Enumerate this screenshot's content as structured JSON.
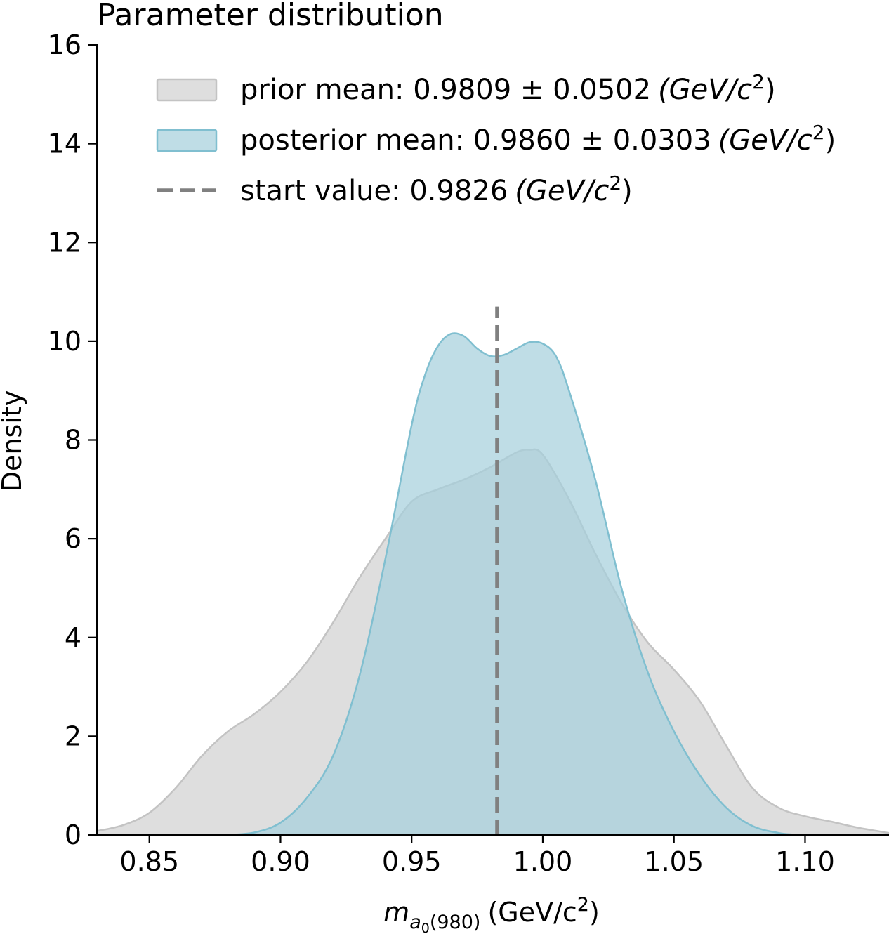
{
  "chart_data": {
    "type": "area",
    "title": "Parameter distribution",
    "ylabel": "Density",
    "xlabel": {
      "symbol": "m",
      "subscript": "a",
      "subsub": "0",
      "subscript_tail": "(980)",
      "unit": "(GeV/c",
      "unit_sup": "2",
      "unit_close": ")"
    },
    "xlim": [
      0.83,
      1.132
    ],
    "ylim": [
      0,
      16
    ],
    "x_ticks": [
      0.85,
      0.9,
      0.95,
      1.0,
      1.05,
      1.1
    ],
    "x_tick_labels": [
      "0.85",
      "0.90",
      "0.95",
      "1.00",
      "1.05",
      "1.10"
    ],
    "y_ticks": [
      0,
      2,
      4,
      6,
      8,
      10,
      12,
      14,
      16
    ],
    "y_tick_labels": [
      "0",
      "2",
      "4",
      "6",
      "8",
      "10",
      "12",
      "14",
      "16"
    ],
    "grid": false,
    "legend_position": "top",
    "series": [
      {
        "kind": "fill",
        "color": "#d3d3d3",
        "edge": "#c3c3c3",
        "opacity": 0.75,
        "legend": {
          "text": "prior mean: 0.9809 ± 0.0502",
          "unit": "(GeV/c",
          "sup": "2",
          "close": ")"
        },
        "x": [
          0.83,
          0.84,
          0.85,
          0.86,
          0.87,
          0.88,
          0.89,
          0.9,
          0.91,
          0.92,
          0.93,
          0.94,
          0.95,
          0.96,
          0.97,
          0.98,
          0.99,
          0.995,
          1.0,
          1.01,
          1.02,
          1.03,
          1.04,
          1.05,
          1.06,
          1.07,
          1.08,
          1.09,
          1.1,
          1.11,
          1.12,
          1.132
        ],
        "y": [
          0.08,
          0.2,
          0.45,
          0.95,
          1.6,
          2.1,
          2.45,
          2.9,
          3.5,
          4.3,
          5.2,
          6.0,
          6.75,
          7.0,
          7.2,
          7.45,
          7.75,
          7.8,
          7.7,
          6.8,
          5.7,
          4.7,
          3.9,
          3.35,
          2.7,
          1.8,
          0.95,
          0.55,
          0.38,
          0.27,
          0.15,
          0.04
        ]
      },
      {
        "kind": "fill",
        "color": "#a6d0dc",
        "edge": "#80bfd0",
        "opacity": 0.72,
        "legend": {
          "text": "posterior mean: 0.9860 ± 0.0303",
          "unit": "(GeV/c",
          "sup": "2",
          "close": ")"
        },
        "x": [
          0.88,
          0.89,
          0.9,
          0.91,
          0.92,
          0.93,
          0.94,
          0.95,
          0.955,
          0.96,
          0.965,
          0.97,
          0.975,
          0.98,
          0.985,
          0.99,
          0.995,
          1.0,
          1.005,
          1.01,
          1.02,
          1.03,
          1.04,
          1.05,
          1.06,
          1.07,
          1.08,
          1.09,
          1.095
        ],
        "y": [
          0.0,
          0.05,
          0.25,
          0.75,
          1.6,
          3.2,
          5.6,
          8.3,
          9.3,
          9.9,
          10.15,
          10.1,
          9.85,
          9.7,
          9.72,
          9.85,
          9.98,
          9.95,
          9.7,
          9.0,
          7.2,
          5.0,
          3.3,
          2.1,
          1.2,
          0.55,
          0.18,
          0.04,
          0.01
        ]
      },
      {
        "kind": "vline",
        "x": 0.9826,
        "y_top": 10.7,
        "color": "#808080",
        "style": "dashed",
        "legend": {
          "text": "start value: 0.9826",
          "unit": "(GeV/c",
          "sup": "2",
          "close": ")"
        }
      }
    ]
  }
}
